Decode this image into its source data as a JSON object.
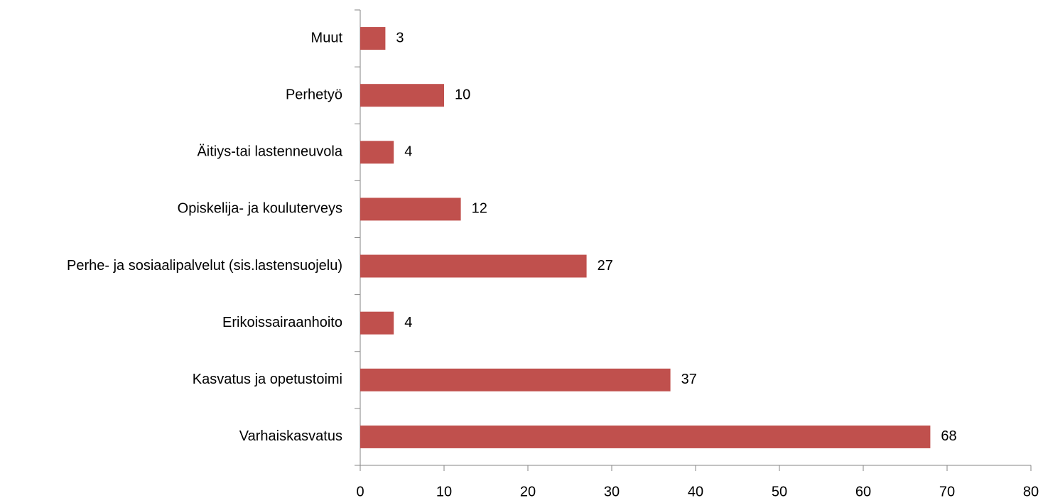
{
  "chart_data": {
    "type": "bar",
    "orientation": "horizontal",
    "categories": [
      "Muut",
      "Perhetyö",
      "Äitiys-tai lastenneuvola",
      "Opiskelija- ja kouluterveys",
      "Perhe- ja sosiaalipalvelut (sis.lastensuojelu)",
      "Erikoissairaanhoito",
      "Kasvatus ja opetustoimi",
      "Varhaiskasvatus"
    ],
    "values": [
      3,
      10,
      4,
      12,
      27,
      4,
      37,
      68
    ],
    "color": "#c0504d",
    "xlim": [
      0,
      80
    ],
    "xticks": [
      0,
      10,
      20,
      30,
      40,
      50,
      60,
      70,
      80
    ],
    "grid": false
  }
}
